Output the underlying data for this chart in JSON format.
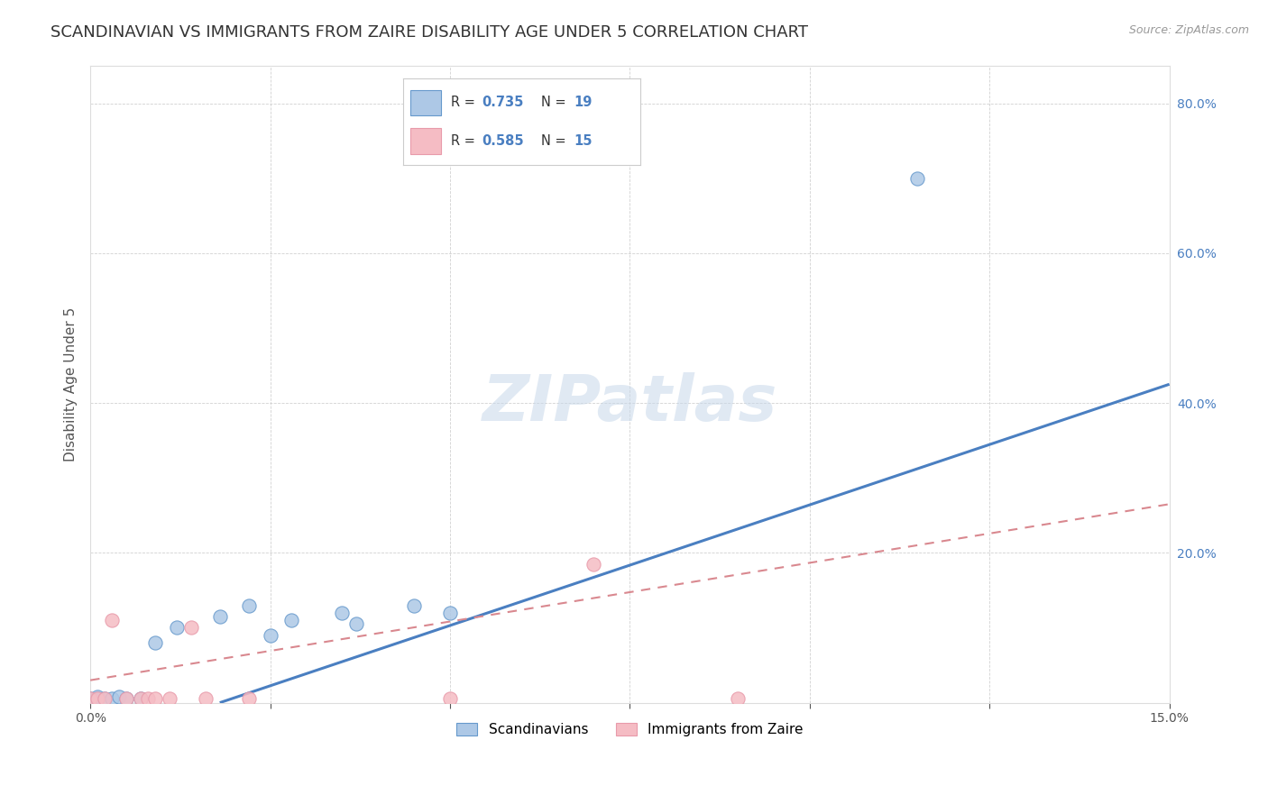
{
  "title": "SCANDINAVIAN VS IMMIGRANTS FROM ZAIRE DISABILITY AGE UNDER 5 CORRELATION CHART",
  "source": "Source: ZipAtlas.com",
  "ylabel_text": "Disability Age Under 5",
  "xlim": [
    0.0,
    0.15
  ],
  "ylim": [
    0.0,
    0.85
  ],
  "y_ticks": [
    0.0,
    0.2,
    0.4,
    0.6,
    0.8
  ],
  "y_tick_labels": [
    "",
    "20.0%",
    "40.0%",
    "60.0%",
    "80.0%"
  ],
  "x_ticks": [
    0.0,
    0.025,
    0.05,
    0.075,
    0.1,
    0.125,
    0.15
  ],
  "x_tick_labels": [
    "0.0%",
    "",
    "",
    "",
    "",
    "",
    "15.0%"
  ],
  "R_scand": 0.735,
  "N_scand": 19,
  "R_zaire": 0.585,
  "N_zaire": 15,
  "legend_scand": "Scandinavians",
  "legend_zaire": "Immigrants from Zaire",
  "scand_marker_face": "#adc8e6",
  "scand_marker_edge": "#6699cc",
  "zaire_marker_face": "#f5bcc4",
  "zaire_marker_edge": "#e89aaa",
  "line_scand_color": "#4a7fc1",
  "line_zaire_color": "#d9888f",
  "ytick_color": "#4a7fc1",
  "watermark_text": "ZIPatlas",
  "scand_points_x": [
    0.0,
    0.001,
    0.001,
    0.002,
    0.003,
    0.004,
    0.005,
    0.007,
    0.009,
    0.012,
    0.018,
    0.022,
    0.025,
    0.028,
    0.035,
    0.037,
    0.045,
    0.05,
    0.115
  ],
  "scand_points_y": [
    0.005,
    0.005,
    0.008,
    0.005,
    0.005,
    0.008,
    0.005,
    0.005,
    0.08,
    0.1,
    0.115,
    0.13,
    0.09,
    0.11,
    0.12,
    0.105,
    0.13,
    0.12,
    0.7
  ],
  "zaire_points_x": [
    0.0,
    0.001,
    0.002,
    0.003,
    0.005,
    0.007,
    0.008,
    0.009,
    0.011,
    0.014,
    0.016,
    0.022,
    0.05,
    0.07,
    0.09
  ],
  "zaire_points_y": [
    0.005,
    0.005,
    0.005,
    0.11,
    0.005,
    0.005,
    0.005,
    0.005,
    0.005,
    0.1,
    0.005,
    0.005,
    0.005,
    0.185,
    0.005
  ],
  "line_scand_x0": 0.018,
  "line_scand_y0": 0.0,
  "line_scand_x1": 0.15,
  "line_scand_y1": 0.425,
  "line_zaire_x0": 0.0,
  "line_zaire_y0": 0.03,
  "line_zaire_x1": 0.15,
  "line_zaire_y1": 0.265,
  "title_fontsize": 13,
  "axis_label_fontsize": 11,
  "tick_fontsize": 10,
  "legend_fontsize": 11
}
